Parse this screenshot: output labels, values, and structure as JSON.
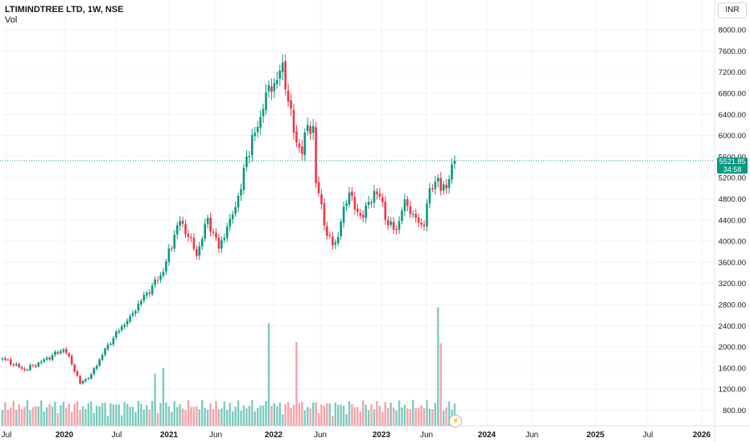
{
  "header": {
    "title": "LTIMINDTREE LTD, 1W, NSE",
    "volume_label": "Vol"
  },
  "currency_button": "INR",
  "last_price": {
    "value": "5521.85",
    "countdown": "34:58"
  },
  "alert_icon": "lightning-icon",
  "colors": {
    "up": "#089981",
    "down": "#f23645",
    "up_volume": "#7ccbbf",
    "down_volume": "#f6a2a9",
    "grid": "#f0f3fa",
    "axis_text": "#131722"
  },
  "chart_data": {
    "type": "candlestick",
    "timeframe": "1W",
    "y_axis": {
      "ticks": [
        800,
        1200,
        1600,
        2000,
        2400,
        2800,
        3200,
        3600,
        4000,
        4400,
        4800,
        5200,
        5600,
        6000,
        6400,
        6800,
        7200,
        7600,
        8000
      ],
      "tick_labels": [
        "800.00",
        "1200.00",
        "1600.00",
        "2000.00",
        "2400.00",
        "2800.00",
        "3200.00",
        "3600.00",
        "4000.00",
        "4400.00",
        "4800.00",
        "5200.00",
        "5600.00",
        "6000.00",
        "6400.00",
        "6800.00",
        "7200.00",
        "7600.00",
        "8000.00"
      ],
      "range": [
        700,
        8200
      ]
    },
    "x_axis": {
      "tick_labels": [
        "Jul",
        "2020",
        "Jul",
        "2021",
        "Jun",
        "2022",
        "Jun",
        "2023",
        "Jun",
        "2024",
        "Jun",
        "2025",
        "Jul",
        "2026"
      ]
    },
    "close_anchors": [
      [
        0,
        1780
      ],
      [
        8,
        1560
      ],
      [
        14,
        1720
      ],
      [
        22,
        1950
      ],
      [
        24,
        1820
      ],
      [
        28,
        1300
      ],
      [
        32,
        1480
      ],
      [
        38,
        2040
      ],
      [
        46,
        2580
      ],
      [
        54,
        3160
      ],
      [
        58,
        3420
      ],
      [
        62,
        4120
      ],
      [
        64,
        4380
      ],
      [
        67,
        4080
      ],
      [
        70,
        3720
      ],
      [
        74,
        4440
      ],
      [
        76,
        4160
      ],
      [
        78,
        3860
      ],
      [
        82,
        4420
      ],
      [
        86,
        4980
      ],
      [
        88,
        5600
      ],
      [
        91,
        6050
      ],
      [
        94,
        6500
      ],
      [
        96,
        6950
      ],
      [
        99,
        7050
      ],
      [
        101,
        7380
      ],
      [
        103,
        6640
      ],
      [
        105,
        6050
      ],
      [
        108,
        5650
      ],
      [
        110,
        6200
      ],
      [
        112,
        6180
      ],
      [
        113,
        5100
      ],
      [
        115,
        4700
      ],
      [
        117,
        4100
      ],
      [
        119,
        3920
      ],
      [
        121,
        4080
      ],
      [
        123,
        4650
      ],
      [
        125,
        4920
      ],
      [
        127,
        4600
      ],
      [
        130,
        4450
      ],
      [
        134,
        4950
      ],
      [
        137,
        4740
      ],
      [
        139,
        4300
      ],
      [
        142,
        4220
      ],
      [
        145,
        4790
      ],
      [
        148,
        4520
      ],
      [
        150,
        4350
      ],
      [
        152,
        4280
      ],
      [
        154,
        5000
      ],
      [
        157,
        5200
      ],
      [
        158,
        4950
      ],
      [
        160,
        5000
      ],
      [
        162,
        5450
      ],
      [
        163,
        5521.85
      ]
    ],
    "volume_peaks": [
      {
        "week": 96,
        "relative": 0.71
      },
      {
        "week": 106,
        "relative": 0.58
      },
      {
        "week": 157,
        "relative": 0.82
      },
      {
        "week": 158,
        "relative": 0.57
      },
      {
        "week": 58,
        "relative": 0.4
      },
      {
        "week": 55,
        "relative": 0.36
      }
    ],
    "last_price_line": 5521.85
  }
}
